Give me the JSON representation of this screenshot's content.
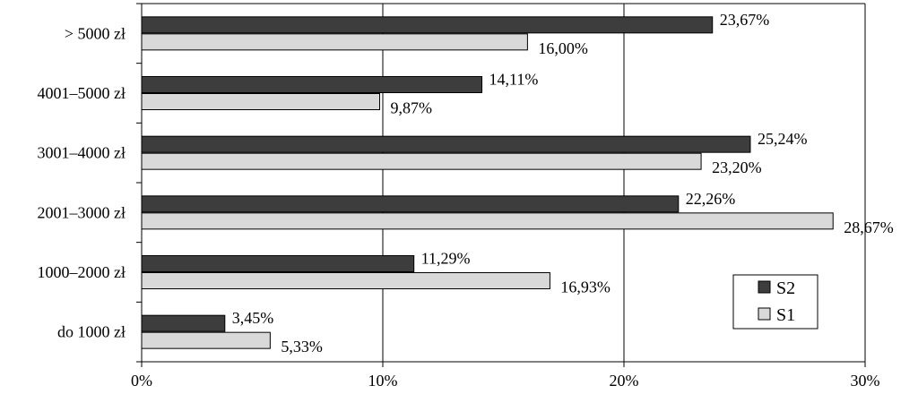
{
  "chart_data": {
    "type": "bar",
    "orientation": "horizontal",
    "categories": [
      "> 5000 zł",
      "4001–5000 zł",
      "3001–4000 zł",
      "2001–3000 zł",
      "1000–2000 zł",
      "do 1000 zł"
    ],
    "series": [
      {
        "name": "S2",
        "color": "#3d3d3d",
        "values": [
          23.67,
          14.11,
          25.24,
          22.26,
          11.29,
          3.45
        ],
        "labels": [
          "23,67%",
          "14,11%",
          "25,24%",
          "22,26%",
          "11,29%",
          "3,45%"
        ]
      },
      {
        "name": "S1",
        "color": "#d9d9d9",
        "values": [
          16.0,
          9.87,
          23.2,
          28.67,
          16.93,
          5.33
        ],
        "labels": [
          "16,00%",
          "9,87%",
          "23,20%",
          "28,67%",
          "16,93%",
          "5,33%"
        ]
      }
    ],
    "x_ticks": [
      0,
      10,
      20,
      30
    ],
    "x_tick_labels": [
      "0%",
      "10%",
      "20%",
      "30%"
    ],
    "xlim": [
      0,
      30
    ],
    "grid": "vertical",
    "legend": {
      "position": "bottom-right",
      "items": [
        "S2",
        "S1"
      ]
    },
    "title": "",
    "xlabel": "",
    "ylabel": ""
  }
}
